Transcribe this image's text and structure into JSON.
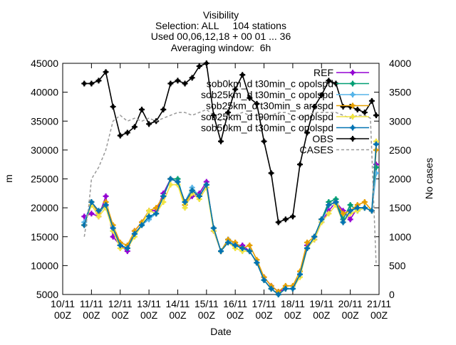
{
  "chart_data": {
    "type": "line",
    "title_lines": [
      "Visibility",
      "Selection: ALL     104 stations",
      "Used 00,06,12,18 + 00 01 ... 36",
      "Averaging window:  6h"
    ],
    "xlabel": "Date",
    "ylabel": "m",
    "y2label": "No cases",
    "ylim": [
      5000,
      45000
    ],
    "y2lim": [
      0,
      4000
    ],
    "yticks": [
      5000,
      10000,
      15000,
      20000,
      25000,
      30000,
      35000,
      40000,
      45000
    ],
    "y2ticks": [
      0,
      500,
      1000,
      1500,
      2000,
      2500,
      3000,
      3500,
      4000
    ],
    "xlim": [
      0,
      11
    ],
    "xtick_labels": [
      "10/11\n00Z",
      "11/11\n00Z",
      "12/11\n00Z",
      "13/11\n00Z",
      "14/11\n00Z",
      "15/11\n00Z",
      "16/11\n00Z",
      "17/11\n00Z",
      "18/11\n00Z",
      "19/11\n00Z",
      "20/11\n00Z",
      "21/11\n00Z"
    ],
    "x_unit": "days since 10/11 00Z",
    "grid": false,
    "legend_position": "top-right",
    "series": [
      {
        "name": "REF",
        "color": "#9400d3",
        "marker": "plus",
        "axis": "y",
        "x": [
          0.75,
          1,
          1.25,
          1.5,
          1.75,
          2,
          2.25,
          2.5,
          2.75,
          3,
          3.25,
          3.5,
          3.75,
          4,
          4.25,
          4.5,
          4.75,
          5,
          5.25,
          5.5,
          5.75,
          6,
          6.25,
          6.5,
          6.75,
          7,
          7.25,
          7.5,
          7.75,
          8,
          8.25,
          8.5,
          8.75,
          9,
          9.25,
          9.5,
          9.75,
          10,
          10.25,
          10.5,
          10.75,
          10.9
        ],
        "y": [
          18500,
          19000,
          18500,
          22000,
          15000,
          13500,
          12500,
          16000,
          17500,
          19500,
          19500,
          22500,
          25000,
          24500,
          20500,
          22000,
          22500,
          24500,
          16000,
          12500,
          14500,
          13500,
          13500,
          12500,
          10500,
          8000,
          6500,
          5500,
          6000,
          6000,
          8500,
          13500,
          14500,
          17500,
          19500,
          21000,
          19500,
          18000,
          20000,
          20000,
          19500,
          27500
        ]
      },
      {
        "name": "sob0km_d t30min_c opolspd",
        "color": "#009e73",
        "marker": "plus",
        "axis": "y",
        "x": [
          0.75,
          1,
          1.25,
          1.5,
          1.75,
          2,
          2.25,
          2.5,
          2.75,
          3,
          3.25,
          3.5,
          3.75,
          4,
          4.25,
          4.5,
          4.75,
          5,
          5.25,
          5.5,
          5.75,
          6,
          6.25,
          6.5,
          6.75,
          7,
          7.25,
          7.5,
          7.75,
          8,
          8.25,
          8.5,
          8.75,
          9,
          9.25,
          9.5,
          9.75,
          10,
          10.25,
          10.5,
          10.75,
          10.9
        ],
        "y": [
          17000,
          21000,
          19000,
          20500,
          16000,
          13500,
          13000,
          15500,
          17000,
          18500,
          19000,
          22000,
          25000,
          25000,
          20500,
          23000,
          22000,
          24000,
          16500,
          12500,
          14500,
          13500,
          13000,
          12500,
          10500,
          7500,
          6000,
          5000,
          6000,
          6000,
          8500,
          13000,
          15000,
          18000,
          21000,
          21500,
          18000,
          20500,
          19500,
          20000,
          19500,
          27000
        ]
      },
      {
        "name": "sob25km_d t30min_c opolspd",
        "color": "#56b4e9",
        "marker": "plus",
        "axis": "y",
        "x": [
          0.75,
          1,
          1.25,
          1.5,
          1.75,
          2,
          2.25,
          2.5,
          2.75,
          3,
          3.25,
          3.5,
          3.75,
          4,
          4.25,
          4.5,
          4.75,
          5,
          5.25,
          5.5,
          5.75,
          6,
          6.25,
          6.5,
          6.75,
          7,
          7.25,
          7.5,
          7.75,
          8,
          8.25,
          8.5,
          8.75,
          9,
          9.25,
          9.5,
          9.75,
          10,
          10.25,
          10.5,
          10.75,
          10.9
        ],
        "y": [
          17500,
          21000,
          19000,
          20500,
          16500,
          13500,
          13000,
          15500,
          17000,
          18000,
          19000,
          22000,
          25000,
          24500,
          21000,
          23500,
          22000,
          24000,
          16500,
          12500,
          14500,
          13500,
          13000,
          12500,
          10500,
          7500,
          6000,
          5000,
          6000,
          6000,
          8500,
          13000,
          15000,
          17500,
          20500,
          21000,
          17500,
          19500,
          20000,
          20000,
          19500,
          26000
        ]
      },
      {
        "name": "sob25km_d t30min_s arcspd",
        "color": "#e69f00",
        "marker": "plus",
        "axis": "y",
        "x": [
          0.75,
          1,
          1.25,
          1.5,
          1.75,
          2,
          2.25,
          2.5,
          2.75,
          3,
          3.25,
          3.5,
          3.75,
          4,
          4.25,
          4.5,
          4.75,
          5,
          5.25,
          5.5,
          5.75,
          6,
          6.25,
          6.5,
          6.75,
          7,
          7.25,
          7.5,
          7.75,
          8,
          8.25,
          8.5,
          8.75,
          9,
          9.25,
          9.5,
          9.75,
          10,
          10.25,
          10.5,
          10.75,
          10.9
        ],
        "y": [
          17000,
          21000,
          19000,
          21000,
          17000,
          14000,
          13500,
          16000,
          17500,
          19500,
          20000,
          22000,
          25000,
          24500,
          20500,
          23000,
          22000,
          24000,
          16500,
          12500,
          14500,
          14000,
          13000,
          13500,
          11000,
          8000,
          6500,
          5500,
          6500,
          6500,
          9000,
          14000,
          15000,
          18000,
          20500,
          21000,
          19000,
          19500,
          20500,
          21000,
          19500,
          30000
        ]
      },
      {
        "name": "sob25km_d t90min_c opolspd",
        "color": "#f0e442",
        "marker": "plus",
        "axis": "y",
        "x": [
          0.75,
          1,
          1.25,
          1.5,
          1.75,
          2,
          2.25,
          2.5,
          2.75,
          3,
          3.25,
          3.5,
          3.75,
          4,
          4.25,
          4.5,
          4.75,
          5,
          5.25,
          5.5,
          5.75,
          6,
          6.25,
          6.5,
          6.75,
          7,
          7.25,
          7.5,
          7.75,
          8,
          8.25,
          8.5,
          8.75,
          9,
          9.25,
          9.5,
          9.75,
          10,
          10.25,
          10.5,
          10.75,
          10.9
        ],
        "y": [
          17000,
          20500,
          18500,
          20000,
          16000,
          13000,
          13000,
          15000,
          17000,
          19500,
          19000,
          21000,
          24000,
          24000,
          20000,
          22500,
          21500,
          23500,
          16000,
          12500,
          14000,
          13000,
          12500,
          12500,
          10500,
          7500,
          6000,
          5000,
          6000,
          6000,
          8000,
          13000,
          14500,
          17500,
          19000,
          20500,
          17500,
          19000,
          19500,
          20000,
          19500,
          31500
        ]
      },
      {
        "name": "sob50km_d t30min_c opolspd",
        "color": "#0072b2",
        "marker": "plus",
        "axis": "y",
        "x": [
          0.75,
          1,
          1.25,
          1.5,
          1.75,
          2,
          2.25,
          2.5,
          2.75,
          3,
          3.25,
          3.5,
          3.75,
          4,
          4.25,
          4.5,
          4.75,
          5,
          5.25,
          5.5,
          5.75,
          6,
          6.25,
          6.5,
          6.75,
          7,
          7.25,
          7.5,
          7.75,
          8,
          8.25,
          8.5,
          8.75,
          9,
          9.25,
          9.5,
          9.75,
          10,
          10.25,
          10.5,
          10.75,
          10.9
        ],
        "y": [
          17000,
          21000,
          19500,
          20500,
          16500,
          13500,
          13000,
          15500,
          17000,
          18500,
          19000,
          22000,
          25000,
          24500,
          21000,
          23000,
          22000,
          24000,
          16500,
          12500,
          14000,
          13500,
          13000,
          12500,
          10500,
          7500,
          6000,
          5000,
          6000,
          6000,
          8500,
          13000,
          15000,
          18000,
          20500,
          21000,
          17500,
          19500,
          20000,
          20000,
          19500,
          31000
        ]
      },
      {
        "name": "OBS",
        "color": "#000000",
        "marker": "plus",
        "axis": "y",
        "x": [
          0.75,
          1,
          1.25,
          1.5,
          1.75,
          2,
          2.25,
          2.5,
          2.75,
          3,
          3.25,
          3.5,
          3.75,
          4,
          4.25,
          4.5,
          4.75,
          5,
          5.25,
          5.5,
          5.75,
          6,
          6.25,
          6.5,
          6.75,
          7,
          7.25,
          7.5,
          7.75,
          8,
          8.25,
          8.5,
          8.75,
          9,
          9.25,
          9.5,
          9.75,
          10,
          10.25,
          10.5,
          10.75,
          10.9
        ],
        "y": [
          41500,
          41500,
          42000,
          43500,
          37500,
          32500,
          33000,
          34000,
          37000,
          34500,
          35000,
          37000,
          41500,
          42000,
          41500,
          42500,
          44500,
          45000,
          36000,
          31500,
          36500,
          40500,
          43000,
          39000,
          38000,
          31500,
          26000,
          17500,
          18000,
          18500,
          27500,
          33000,
          37500,
          39500,
          42000,
          41500,
          37500,
          37500,
          37000,
          36500,
          38500,
          36000
        ]
      },
      {
        "name": "CASES",
        "color": "#999999",
        "marker": "none",
        "dashed": true,
        "axis": "y2",
        "x": [
          0.75,
          0.9,
          1,
          1.25,
          1.5,
          1.75,
          2,
          2.25,
          2.5,
          2.75,
          3,
          3.25,
          3.5,
          3.75,
          4,
          4.25,
          4.5,
          4.75,
          5,
          5.25,
          5.5,
          5.75,
          6,
          6.25,
          6.5,
          6.75,
          7,
          7.25,
          7.5,
          7.75,
          8,
          8.25,
          8.5,
          8.75,
          9,
          9.25,
          9.5,
          9.75,
          10,
          10.25,
          10.5,
          10.7,
          10.9
        ],
        "y": [
          1000,
          1500,
          2000,
          2200,
          2500,
          3000,
          3100,
          3000,
          3050,
          3000,
          3050,
          3000,
          3050,
          3100,
          3150,
          3150,
          3100,
          3150,
          3200,
          3100,
          3000,
          3100,
          3100,
          3150,
          3100,
          3100,
          3050,
          3100,
          3150,
          3150,
          3100,
          3050,
          3100,
          3150,
          3150,
          3150,
          3150,
          3100,
          3050,
          3100,
          3100,
          3050,
          500
        ]
      }
    ]
  }
}
